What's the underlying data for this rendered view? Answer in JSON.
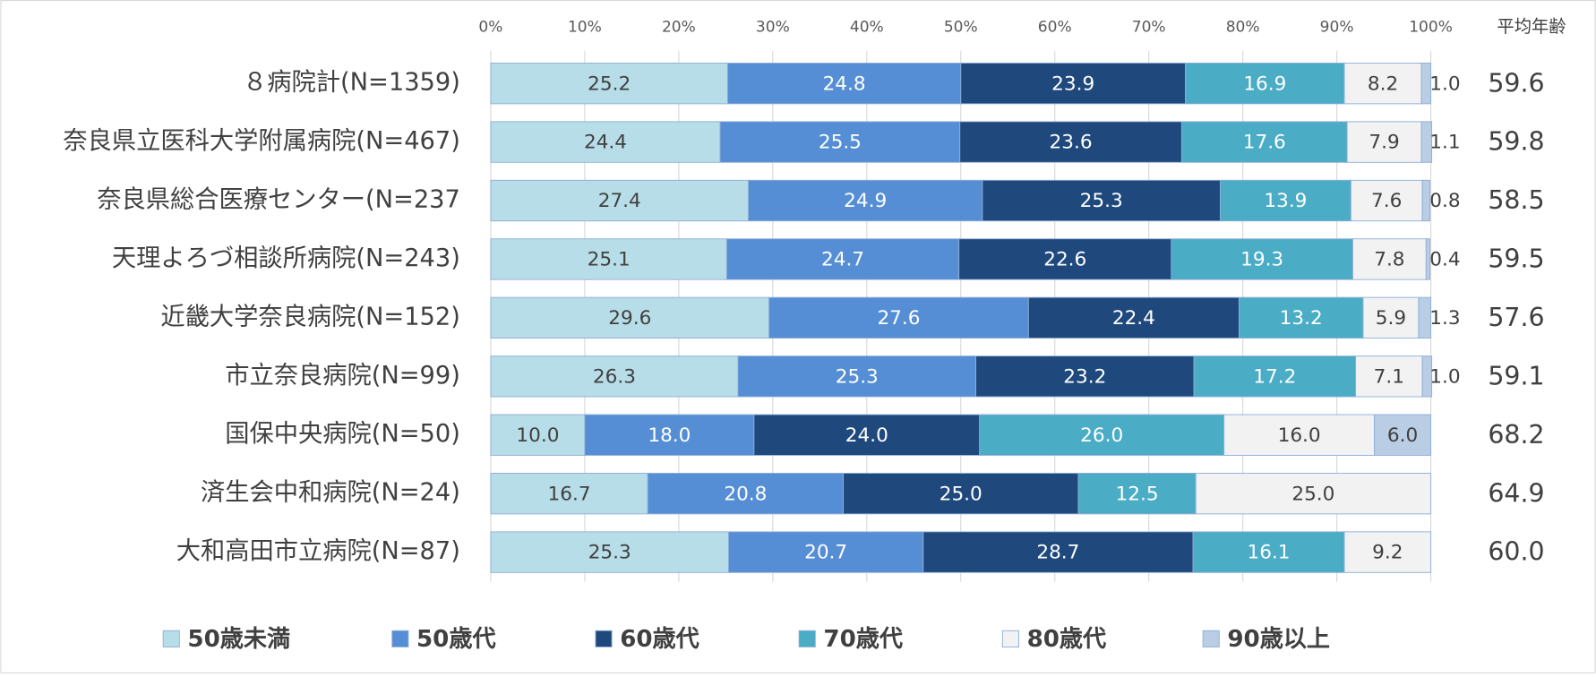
{
  "chart_data": {
    "type": "stacked-bar-horizontal",
    "categories": [
      "８病院計(N=1359)",
      "奈良県立医科大学附属病院(N=467)",
      "奈良県総合医療センター(N=237",
      "天理よろづ相談所病院(N=243)",
      "近畿大学奈良病院(N=152)",
      "市立奈良病院(N=99)",
      "国保中央病院(N=50)",
      "済生会中和病院(N=24)",
      "大和高田市立病院(N=87)"
    ],
    "series": [
      {
        "name": "50歳未満",
        "color": "#b7dde8",
        "values": [
          25.2,
          24.4,
          27.4,
          25.1,
          29.6,
          26.3,
          10,
          16.7,
          25.3
        ],
        "value_labels": [
          "25.2",
          "24.4",
          "27.4",
          "25.1",
          "29.6",
          "26.3",
          "10.0",
          "16.7",
          "25.3"
        ]
      },
      {
        "name": "50歳代",
        "color": "#558ed5",
        "values": [
          24.8,
          25.5,
          24.9,
          24.7,
          27.6,
          25.3,
          18,
          20.8,
          20.7
        ],
        "value_labels": [
          "24.8",
          "25.5",
          "24.9",
          "24.7",
          "27.6",
          "25.3",
          "18.0",
          "20.8",
          "20.7"
        ]
      },
      {
        "name": "60歳代",
        "color": "#1f497d",
        "values": [
          23.9,
          23.6,
          25.3,
          22.6,
          22.4,
          23.2,
          24,
          25,
          28.7
        ],
        "value_labels": [
          "23.9",
          "23.6",
          "25.3",
          "22.6",
          "22.4",
          "23.2",
          "24.0",
          "25.0",
          "28.7"
        ]
      },
      {
        "name": "70歳代",
        "color": "#4bacc6",
        "values": [
          16.9,
          17.6,
          13.9,
          19.3,
          13.2,
          17.2,
          26,
          12.5,
          16.1
        ],
        "value_labels": [
          "16.9",
          "17.6",
          "13.9",
          "19.3",
          "13.2",
          "17.2",
          "26.0",
          "12.5",
          "16.1"
        ]
      },
      {
        "name": "80歳代",
        "color": "#f2f2f2",
        "values": [
          8.2,
          7.9,
          7.6,
          7.8,
          5.9,
          7.1,
          16,
          25,
          9.2
        ],
        "value_labels": [
          "8.2",
          "7.9",
          "7.6",
          "7.8",
          "5.9",
          "7.1",
          "16.0",
          "25.0",
          "9.2"
        ]
      },
      {
        "name": "90歳以上",
        "color": "#b9cde5",
        "values": [
          1,
          1.1,
          0.8,
          0.4,
          1.3,
          1,
          6,
          null,
          null
        ],
        "value_labels": [
          "1.0",
          "1.1",
          "0.8",
          "0.4",
          "1.3",
          "1.0",
          "6.0",
          null,
          null
        ]
      }
    ],
    "xlim": [
      0,
      100
    ],
    "xticks": [
      {
        "value": 0,
        "label": "0%"
      },
      {
        "value": 10,
        "label": "10%"
      },
      {
        "value": 20,
        "label": "20%"
      },
      {
        "value": 30,
        "label": "30%"
      },
      {
        "value": 40,
        "label": "40%"
      },
      {
        "value": 50,
        "label": "50%"
      },
      {
        "value": 60,
        "label": "60%"
      },
      {
        "value": 70,
        "label": "70%"
      },
      {
        "value": 80,
        "label": "80%"
      },
      {
        "value": 90,
        "label": "90%"
      },
      {
        "value": 100,
        "label": "100%"
      }
    ],
    "grid": true,
    "legend": "bottom",
    "average_age": {
      "title": "平均年齢",
      "values": [
        59.6,
        59.8,
        58.5,
        59.5,
        57.6,
        59.1,
        68.2,
        64.9,
        60
      ],
      "value_labels": [
        "59.6",
        "59.8",
        "58.5",
        "59.5",
        "57.6",
        "59.1",
        "68.2",
        "64.9",
        "60.0"
      ]
    }
  }
}
